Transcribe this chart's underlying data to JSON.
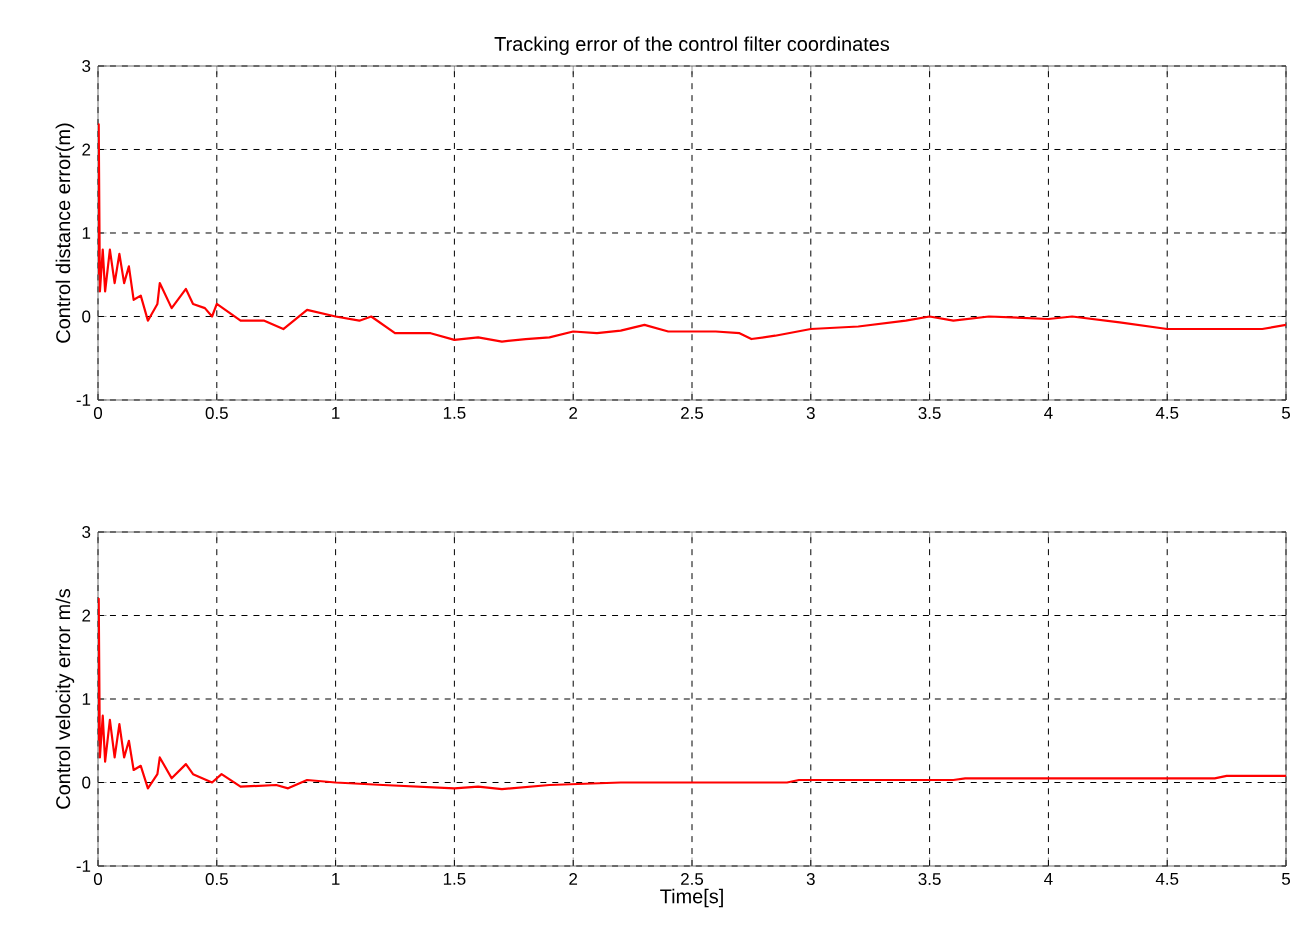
{
  "chart_data": [
    {
      "type": "line",
      "title": "Tracking error of the control filter coordinates",
      "ylabel": "Control distance error(m)",
      "x": [
        0,
        0.003,
        0.008,
        0.02,
        0.03,
        0.05,
        0.07,
        0.09,
        0.11,
        0.13,
        0.15,
        0.18,
        0.21,
        0.25,
        0.26,
        0.31,
        0.37,
        0.4,
        0.45,
        0.48,
        0.5,
        0.55,
        0.6,
        0.7,
        0.78,
        0.88,
        1.0,
        1.1,
        1.15,
        1.25,
        1.4,
        1.5,
        1.6,
        1.7,
        1.8,
        1.9,
        2.0,
        2.1,
        2.2,
        2.3,
        2.4,
        2.6,
        2.7,
        2.75,
        2.85,
        3.0,
        3.2,
        3.4,
        3.5,
        3.6,
        3.75,
        4.0,
        4.1,
        4.3,
        4.5,
        4.7,
        4.9,
        5.0
      ],
      "series": [
        {
          "color": "#ff0000",
          "values": [
            0.5,
            2.3,
            0.3,
            0.8,
            0.3,
            0.8,
            0.4,
            0.75,
            0.4,
            0.6,
            0.2,
            0.25,
            -0.05,
            0.15,
            0.4,
            0.1,
            0.33,
            0.15,
            0.1,
            0.0,
            0.15,
            0.05,
            -0.05,
            -0.05,
            -0.15,
            0.08,
            0.0,
            -0.05,
            0.0,
            -0.2,
            -0.2,
            -0.28,
            -0.25,
            -0.3,
            -0.27,
            -0.25,
            -0.18,
            -0.2,
            -0.17,
            -0.1,
            -0.18,
            -0.18,
            -0.2,
            -0.27,
            -0.23,
            -0.15,
            -0.12,
            -0.05,
            0.0,
            -0.05,
            0.0,
            -0.03,
            0.0,
            -0.07,
            -0.15,
            -0.15,
            -0.15,
            -0.1
          ]
        }
      ],
      "xlim": [
        0,
        5
      ],
      "ylim": [
        -1,
        3
      ],
      "xticks": [
        0,
        0.5,
        1,
        1.5,
        2,
        2.5,
        3,
        3.5,
        4,
        4.5,
        5
      ],
      "yticks": [
        -1,
        0,
        1,
        2,
        3
      ],
      "grid": true,
      "line_style": "solid"
    },
    {
      "type": "line",
      "xlabel": "Time[s]",
      "ylabel": "Control velocity error m/s",
      "x": [
        0,
        0.003,
        0.008,
        0.02,
        0.03,
        0.05,
        0.07,
        0.09,
        0.11,
        0.13,
        0.15,
        0.18,
        0.21,
        0.25,
        0.26,
        0.31,
        0.37,
        0.4,
        0.48,
        0.52,
        0.6,
        0.75,
        0.8,
        0.88,
        1.0,
        1.2,
        1.5,
        1.6,
        1.7,
        1.9,
        2.2,
        2.9,
        2.95,
        3.6,
        3.65,
        4.7,
        4.75,
        5.0
      ],
      "series": [
        {
          "color": "#ff0000",
          "values": [
            0.5,
            2.2,
            0.3,
            0.8,
            0.25,
            0.75,
            0.3,
            0.7,
            0.3,
            0.5,
            0.15,
            0.2,
            -0.07,
            0.1,
            0.3,
            0.05,
            0.22,
            0.1,
            0.0,
            0.1,
            -0.05,
            -0.03,
            -0.07,
            0.03,
            0.0,
            -0.03,
            -0.07,
            -0.05,
            -0.08,
            -0.03,
            0.0,
            0.0,
            0.03,
            0.03,
            0.05,
            0.05,
            0.08,
            0.08
          ]
        }
      ],
      "xlim": [
        0,
        5
      ],
      "ylim": [
        -1,
        3
      ],
      "xticks": [
        0,
        0.5,
        1,
        1.5,
        2,
        2.5,
        3,
        3.5,
        4,
        4.5,
        5
      ],
      "yticks": [
        -1,
        0,
        1,
        2,
        3
      ],
      "grid": true,
      "line_style": "solid"
    }
  ]
}
